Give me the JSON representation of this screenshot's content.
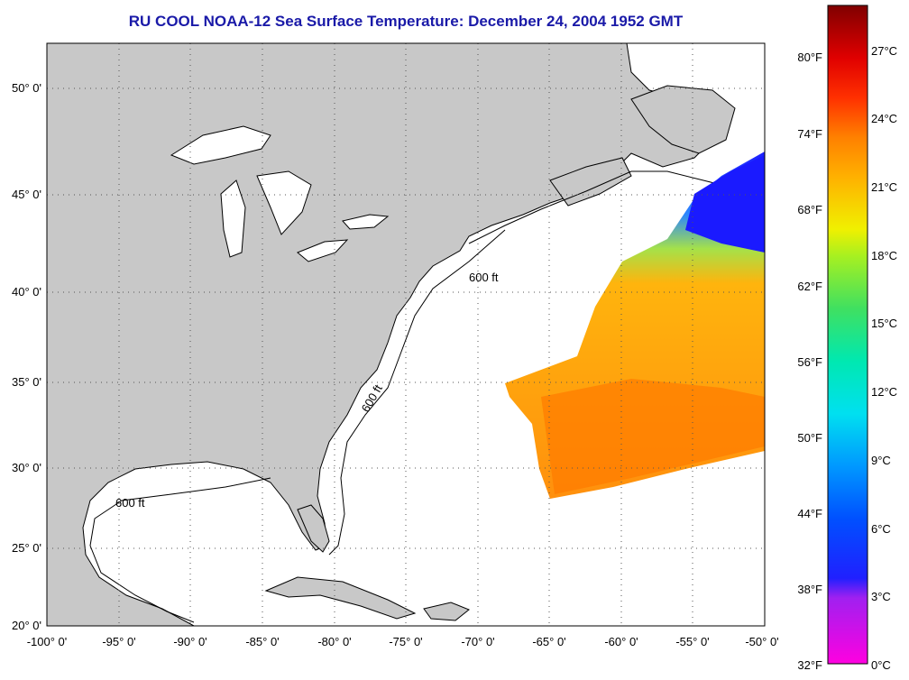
{
  "title": "RU COOL  NOAA-12  Sea Surface Temperature:  December 24, 2004 1952 GMT",
  "map": {
    "lat_labels": [
      "50° 0'",
      "45° 0'",
      "40° 0'",
      "35° 0'",
      "30° 0'",
      "25° 0'",
      "20° 0'"
    ],
    "lon_labels": [
      "-100° 0'",
      "-95° 0'",
      "-90° 0'",
      "-85° 0'",
      "-80° 0'",
      "-75° 0'",
      "-70° 0'",
      "-65° 0'",
      "-60° 0'",
      "-55° 0'",
      "-50° 0'"
    ],
    "isobath_label": "600 ft",
    "land_color": "#c8c8c8",
    "ocean_color": "#ffffff"
  },
  "colorbar": {
    "fahrenheit_labels": [
      "80°F",
      "74°F",
      "68°F",
      "62°F",
      "56°F",
      "50°F",
      "44°F",
      "38°F",
      "32°F"
    ],
    "celsius_labels": [
      "27°C",
      "24°C",
      "21°C",
      "18°C",
      "15°C",
      "12°C",
      "9°C",
      "6°C",
      "3°C",
      "0°C"
    ]
  }
}
